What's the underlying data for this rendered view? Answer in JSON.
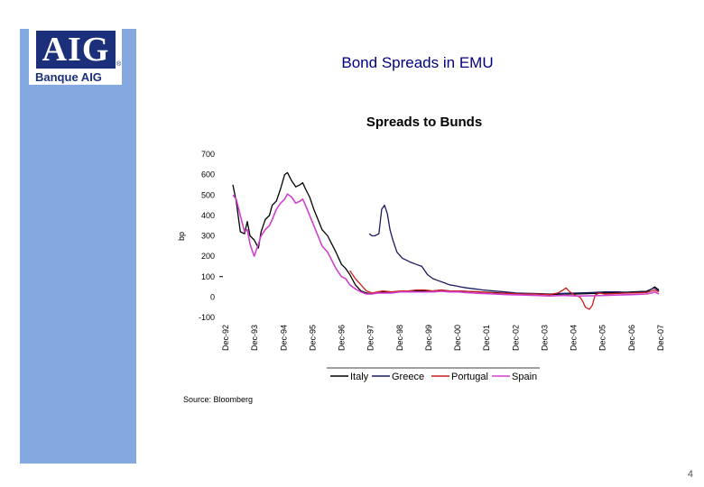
{
  "logo": {
    "mark": "AIG",
    "reg": "®",
    "subtitle": "Banque AIG"
  },
  "slide_title": "Bond Spreads in EMU",
  "source": "Source: Bloomberg",
  "page_number": "4",
  "colors": {
    "sidebar": "#84a8e0",
    "title": "#000080",
    "italy": "#000000",
    "greece": "#1a1a5e",
    "portugal": "#cc2020",
    "spain": "#d040d0"
  },
  "chart_data": {
    "type": "line",
    "title": "Spreads to Bunds",
    "ylabel": "bp",
    "xlabel": "",
    "ylim": [
      -100,
      700
    ],
    "yticks": [
      700,
      600,
      500,
      400,
      300,
      200,
      100,
      0,
      -100
    ],
    "xlim": [
      1992.58,
      2007.95
    ],
    "xticks": [
      "Dec-92",
      "Dec-93",
      "Dec-94",
      "Dec-95",
      "Dec-96",
      "Dec-97",
      "Dec-98",
      "Dec-99",
      "Dec-00",
      "Dec-01",
      "Dec-02",
      "Dec-03",
      "Dec-04",
      "Dec-05",
      "Dec-06",
      "Dec-07"
    ],
    "legend": "bottom",
    "grid": false,
    "series": [
      {
        "name": "Italy",
        "color": "#000000",
        "points": [
          [
            1992.58,
            550
          ],
          [
            1992.7,
            470
          ],
          [
            1992.85,
            320
          ],
          [
            1993.0,
            310
          ],
          [
            1993.1,
            370
          ],
          [
            1993.2,
            300
          ],
          [
            1993.35,
            280
          ],
          [
            1993.5,
            240
          ],
          [
            1993.6,
            320
          ],
          [
            1993.75,
            380
          ],
          [
            1993.9,
            400
          ],
          [
            1994.0,
            450
          ],
          [
            1994.15,
            470
          ],
          [
            1994.3,
            530
          ],
          [
            1994.45,
            600
          ],
          [
            1994.55,
            610
          ],
          [
            1994.7,
            570
          ],
          [
            1994.85,
            540
          ],
          [
            1995.0,
            550
          ],
          [
            1995.1,
            560
          ],
          [
            1995.2,
            530
          ],
          [
            1995.35,
            490
          ],
          [
            1995.5,
            430
          ],
          [
            1995.65,
            380
          ],
          [
            1995.8,
            330
          ],
          [
            1996.0,
            300
          ],
          [
            1996.15,
            260
          ],
          [
            1996.3,
            220
          ],
          [
            1996.5,
            160
          ],
          [
            1996.65,
            140
          ],
          [
            1996.8,
            110
          ],
          [
            1997.0,
            60
          ],
          [
            1997.2,
            30
          ],
          [
            1997.4,
            20
          ],
          [
            1997.6,
            15
          ],
          [
            1997.8,
            20
          ],
          [
            1998.0,
            25
          ],
          [
            1998.3,
            20
          ],
          [
            1998.6,
            25
          ],
          [
            1998.9,
            30
          ],
          [
            1999.2,
            30
          ],
          [
            1999.5,
            30
          ],
          [
            1999.8,
            30
          ],
          [
            2000.1,
            35
          ],
          [
            2000.4,
            30
          ],
          [
            2000.7,
            30
          ],
          [
            2001.0,
            28
          ],
          [
            2001.5,
            25
          ],
          [
            2002.0,
            22
          ],
          [
            2002.5,
            18
          ],
          [
            2003.0,
            15
          ],
          [
            2003.5,
            15
          ],
          [
            2004.0,
            12
          ],
          [
            2004.5,
            15
          ],
          [
            2005.0,
            15
          ],
          [
            2005.5,
            17
          ],
          [
            2006.0,
            20
          ],
          [
            2006.5,
            22
          ],
          [
            2007.0,
            25
          ],
          [
            2007.5,
            28
          ],
          [
            2007.7,
            40
          ],
          [
            2007.8,
            50
          ],
          [
            2007.95,
            35
          ]
        ]
      },
      {
        "name": "Greece",
        "color": "#1a1a5e",
        "points": [
          [
            1997.5,
            310
          ],
          [
            1997.6,
            300
          ],
          [
            1997.7,
            300
          ],
          [
            1997.85,
            310
          ],
          [
            1997.95,
            430
          ],
          [
            1998.05,
            450
          ],
          [
            1998.15,
            410
          ],
          [
            1998.25,
            330
          ],
          [
            1998.35,
            280
          ],
          [
            1998.5,
            220
          ],
          [
            1998.7,
            190
          ],
          [
            1998.85,
            180
          ],
          [
            1999.0,
            170
          ],
          [
            1999.2,
            160
          ],
          [
            1999.4,
            150
          ],
          [
            1999.6,
            110
          ],
          [
            1999.8,
            90
          ],
          [
            2000.0,
            80
          ],
          [
            2000.2,
            70
          ],
          [
            2000.4,
            60
          ],
          [
            2000.6,
            55
          ],
          [
            2000.8,
            50
          ],
          [
            2001.0,
            45
          ],
          [
            2001.3,
            40
          ],
          [
            2001.6,
            35
          ],
          [
            2002.0,
            30
          ],
          [
            2002.4,
            25
          ],
          [
            2002.8,
            20
          ],
          [
            2003.2,
            18
          ],
          [
            2003.6,
            17
          ],
          [
            2004.0,
            15
          ],
          [
            2004.5,
            18
          ],
          [
            2005.0,
            20
          ],
          [
            2005.5,
            22
          ],
          [
            2006.0,
            25
          ],
          [
            2006.5,
            25
          ],
          [
            2007.0,
            22
          ],
          [
            2007.5,
            25
          ],
          [
            2007.7,
            40
          ],
          [
            2007.8,
            45
          ],
          [
            2007.95,
            30
          ]
        ]
      },
      {
        "name": "Portugal",
        "color": "#cc2020",
        "points": [
          [
            1996.8,
            130
          ],
          [
            1997.0,
            90
          ],
          [
            1997.2,
            60
          ],
          [
            1997.4,
            30
          ],
          [
            1997.6,
            20
          ],
          [
            1997.8,
            25
          ],
          [
            1998.0,
            30
          ],
          [
            1998.3,
            25
          ],
          [
            1998.6,
            30
          ],
          [
            1998.9,
            30
          ],
          [
            1999.2,
            35
          ],
          [
            1999.5,
            35
          ],
          [
            1999.8,
            30
          ],
          [
            2000.1,
            35
          ],
          [
            2000.4,
            30
          ],
          [
            2000.7,
            30
          ],
          [
            2001.0,
            28
          ],
          [
            2001.5,
            25
          ],
          [
            2002.0,
            20
          ],
          [
            2002.5,
            18
          ],
          [
            2003.0,
            15
          ],
          [
            2003.5,
            15
          ],
          [
            2004.0,
            12
          ],
          [
            2004.3,
            20
          ],
          [
            2004.5,
            35
          ],
          [
            2004.6,
            45
          ],
          [
            2004.7,
            30
          ],
          [
            2004.9,
            10
          ],
          [
            2005.1,
            0
          ],
          [
            2005.2,
            -20
          ],
          [
            2005.3,
            -50
          ],
          [
            2005.45,
            -60
          ],
          [
            2005.55,
            -40
          ],
          [
            2005.65,
            10
          ],
          [
            2005.8,
            20
          ],
          [
            2006.0,
            15
          ],
          [
            2006.5,
            18
          ],
          [
            2007.0,
            20
          ],
          [
            2007.5,
            22
          ],
          [
            2007.7,
            30
          ],
          [
            2007.8,
            35
          ],
          [
            2007.95,
            25
          ]
        ]
      },
      {
        "name": "Spain",
        "color": "#d040d0",
        "points": [
          [
            1992.58,
            500
          ],
          [
            1992.7,
            480
          ],
          [
            1992.85,
            400
          ],
          [
            1993.0,
            320
          ],
          [
            1993.1,
            330
          ],
          [
            1993.2,
            260
          ],
          [
            1993.35,
            200
          ],
          [
            1993.5,
            260
          ],
          [
            1993.6,
            300
          ],
          [
            1993.75,
            330
          ],
          [
            1993.9,
            350
          ],
          [
            1994.0,
            380
          ],
          [
            1994.15,
            430
          ],
          [
            1994.3,
            460
          ],
          [
            1994.45,
            480
          ],
          [
            1994.55,
            505
          ],
          [
            1994.7,
            490
          ],
          [
            1994.85,
            460
          ],
          [
            1995.0,
            470
          ],
          [
            1995.1,
            480
          ],
          [
            1995.2,
            450
          ],
          [
            1995.35,
            400
          ],
          [
            1995.5,
            350
          ],
          [
            1995.65,
            300
          ],
          [
            1995.8,
            250
          ],
          [
            1996.0,
            220
          ],
          [
            1996.15,
            180
          ],
          [
            1996.3,
            140
          ],
          [
            1996.5,
            100
          ],
          [
            1996.65,
            90
          ],
          [
            1996.8,
            60
          ],
          [
            1997.0,
            40
          ],
          [
            1997.2,
            25
          ],
          [
            1997.4,
            15
          ],
          [
            1997.6,
            15
          ],
          [
            1997.8,
            20
          ],
          [
            1998.0,
            20
          ],
          [
            1998.3,
            20
          ],
          [
            1998.6,
            25
          ],
          [
            1998.9,
            25
          ],
          [
            1999.2,
            25
          ],
          [
            1999.5,
            25
          ],
          [
            1999.8,
            25
          ],
          [
            2000.1,
            28
          ],
          [
            2000.4,
            25
          ],
          [
            2000.7,
            25
          ],
          [
            2001.0,
            22
          ],
          [
            2001.5,
            18
          ],
          [
            2002.0,
            15
          ],
          [
            2002.5,
            12
          ],
          [
            2003.0,
            10
          ],
          [
            2003.5,
            8
          ],
          [
            2004.0,
            5
          ],
          [
            2004.5,
            8
          ],
          [
            2005.0,
            5
          ],
          [
            2005.5,
            6
          ],
          [
            2006.0,
            8
          ],
          [
            2006.5,
            10
          ],
          [
            2007.0,
            12
          ],
          [
            2007.5,
            15
          ],
          [
            2007.7,
            20
          ],
          [
            2007.8,
            25
          ],
          [
            2007.95,
            15
          ]
        ]
      }
    ]
  }
}
